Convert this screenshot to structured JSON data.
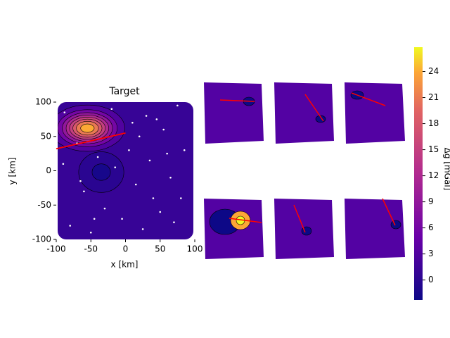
{
  "chart_data": {
    "type": "contour",
    "title": "Target",
    "x_label": "x [km]",
    "y_label": "y [km]",
    "xlim": [
      -100,
      100
    ],
    "xticks": [
      -100,
      -50,
      0,
      50,
      100
    ],
    "ylim": [
      -100,
      100
    ],
    "yticks": [
      -100,
      -50,
      0,
      50,
      100
    ],
    "colormap": "plasma",
    "background": 1,
    "anomalies": [
      {
        "x": -55,
        "y": 62,
        "amplitude": 25,
        "sx": 24,
        "sy": 15
      },
      {
        "x": -35,
        "y": -2,
        "amplitude": -3,
        "sx": 22,
        "sy": 20
      }
    ],
    "levels": [
      -1.5,
      0,
      3,
      6,
      9,
      12,
      15,
      18,
      21,
      24
    ],
    "fault": {
      "color": "#ff0000",
      "x": [
        -100,
        0
      ],
      "y": [
        32,
        55
      ]
    },
    "stations": {
      "color": "#ffffff",
      "x": [
        -88,
        -70,
        -40,
        -20,
        10,
        30,
        55,
        75,
        -60,
        -30,
        15,
        40,
        65,
        85,
        -80,
        -50,
        -5,
        25,
        50,
        70,
        -90,
        -65,
        -15,
        5,
        35,
        60,
        80,
        -45,
        20,
        45
      ],
      "y": [
        85,
        40,
        20,
        90,
        70,
        80,
        60,
        95,
        -30,
        -55,
        -20,
        -40,
        -10,
        30,
        -80,
        -90,
        -70,
        -85,
        -60,
        -75,
        10,
        -15,
        5,
        30,
        15,
        25,
        -40,
        -70,
        50,
        75
      ]
    },
    "colorbar": {
      "label": "Δg [mGal]",
      "clim": [
        -2.3,
        26.8
      ],
      "ticks": [
        0,
        3,
        6,
        9,
        12,
        15,
        18,
        21,
        24
      ]
    }
  }
}
